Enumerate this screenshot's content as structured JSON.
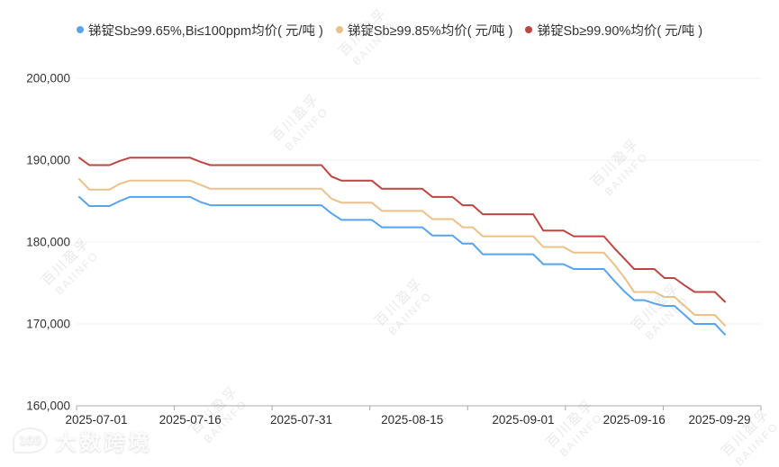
{
  "legend": {
    "items": [
      {
        "label": "锑锭Sb≥99.65%,Bi≤100ppm均价( 元/吨 )",
        "color": "#58a4ec"
      },
      {
        "label": "锑锭Sb≥99.85%均价( 元/吨 )",
        "color": "#e9c189"
      },
      {
        "label": "锑锭Sb≥99.90%均价( 元/吨 )",
        "color": "#bc4742"
      }
    ]
  },
  "watermark": {
    "line1": "百川盈孚",
    "line2": "BAIINFO"
  },
  "footer_logo": {
    "icon_text": "100",
    "text": "大数跨境"
  },
  "chart_data": {
    "type": "line",
    "title": "",
    "xlabel": "",
    "ylabel": "元/吨",
    "ylim": [
      160000,
      200000
    ],
    "grid": true,
    "legend_position": "top",
    "y_tick_labels": [
      "200,000",
      "190,000",
      "180,000",
      "170,000",
      "160,000"
    ],
    "y_tick_values": [
      200000,
      190000,
      180000,
      170000,
      160000
    ],
    "x_tick_labels": [
      "2025-07-01",
      "2025-07-16",
      "2025-07-31",
      "2025-08-15",
      "2025-09-01",
      "2025-09-16",
      "2025-09-29"
    ],
    "x_tick_indices": [
      0,
      11,
      22,
      33,
      44,
      55,
      64
    ],
    "x": [
      "2025-07-01",
      "2025-07-02",
      "2025-07-03",
      "2025-07-04",
      "2025-07-07",
      "2025-07-08",
      "2025-07-09",
      "2025-07-10",
      "2025-07-11",
      "2025-07-14",
      "2025-07-15",
      "2025-07-16",
      "2025-07-17",
      "2025-07-18",
      "2025-07-21",
      "2025-07-22",
      "2025-07-23",
      "2025-07-24",
      "2025-07-25",
      "2025-07-28",
      "2025-07-29",
      "2025-07-30",
      "2025-07-31",
      "2025-08-01",
      "2025-08-04",
      "2025-08-05",
      "2025-08-06",
      "2025-08-07",
      "2025-08-08",
      "2025-08-11",
      "2025-08-12",
      "2025-08-13",
      "2025-08-14",
      "2025-08-15",
      "2025-08-18",
      "2025-08-19",
      "2025-08-20",
      "2025-08-21",
      "2025-08-22",
      "2025-08-25",
      "2025-08-26",
      "2025-08-27",
      "2025-08-28",
      "2025-08-29",
      "2025-09-01",
      "2025-09-02",
      "2025-09-03",
      "2025-09-04",
      "2025-09-05",
      "2025-09-08",
      "2025-09-09",
      "2025-09-10",
      "2025-09-11",
      "2025-09-12",
      "2025-09-15",
      "2025-09-16",
      "2025-09-17",
      "2025-09-18",
      "2025-09-19",
      "2025-09-22",
      "2025-09-23",
      "2025-09-24",
      "2025-09-25",
      "2025-09-26",
      "2025-09-29"
    ],
    "series": [
      {
        "name": "锑锭Sb≥99.65%,Bi≤100ppm均价( 元/吨 )",
        "color": "#58a4ec",
        "values": [
          185500,
          184400,
          184400,
          184400,
          185000,
          185500,
          185500,
          185500,
          185500,
          185500,
          185500,
          185500,
          184900,
          184500,
          184500,
          184500,
          184500,
          184500,
          184500,
          184500,
          184500,
          184500,
          184500,
          184500,
          184500,
          183500,
          182700,
          182700,
          182700,
          182700,
          181800,
          181800,
          181800,
          181800,
          181800,
          180800,
          180800,
          180800,
          179800,
          179800,
          178500,
          178500,
          178500,
          178500,
          178500,
          178500,
          177300,
          177300,
          177300,
          176700,
          176700,
          176700,
          176700,
          175300,
          174000,
          172900,
          172900,
          172500,
          172200,
          172200,
          171100,
          170000,
          170000,
          170000,
          168700
        ]
      },
      {
        "name": "锑锭Sb≥99.85%均价( 元/吨 )",
        "color": "#e9c189",
        "values": [
          187700,
          186400,
          186400,
          186400,
          187100,
          187500,
          187500,
          187500,
          187500,
          187500,
          187500,
          187500,
          187000,
          186500,
          186500,
          186500,
          186500,
          186500,
          186500,
          186500,
          186500,
          186500,
          186500,
          186500,
          186500,
          185300,
          184800,
          184800,
          184800,
          184800,
          183800,
          183800,
          183800,
          183800,
          183800,
          182800,
          182800,
          182800,
          181800,
          181800,
          180700,
          180700,
          180700,
          180700,
          180700,
          180700,
          179400,
          179400,
          179400,
          178700,
          178700,
          178700,
          178700,
          177300,
          175700,
          173900,
          173900,
          173900,
          173300,
          173300,
          172200,
          171100,
          171100,
          171100,
          169800
        ]
      },
      {
        "name": "锑锭Sb≥99.90%均价( 元/吨 )",
        "color": "#bc4742",
        "values": [
          190300,
          189400,
          189400,
          189400,
          189900,
          190300,
          190300,
          190300,
          190300,
          190300,
          190300,
          190300,
          189800,
          189400,
          189400,
          189400,
          189400,
          189400,
          189400,
          189400,
          189400,
          189400,
          189400,
          189400,
          189400,
          188000,
          187500,
          187500,
          187500,
          187500,
          186500,
          186500,
          186500,
          186500,
          186500,
          185500,
          185500,
          185500,
          184500,
          184500,
          183400,
          183400,
          183400,
          183400,
          183400,
          183400,
          181400,
          181400,
          181400,
          180700,
          180700,
          180700,
          180700,
          179300,
          178000,
          176700,
          176700,
          176700,
          175600,
          175600,
          174700,
          173900,
          173900,
          173900,
          172700
        ]
      }
    ]
  }
}
